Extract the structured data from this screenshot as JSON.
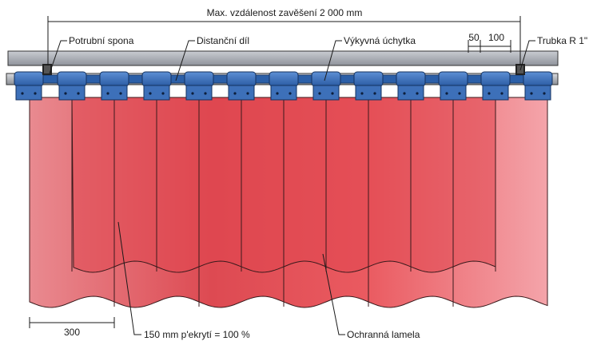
{
  "labels": {
    "max_distance": "Max. vzdálenost zavěšení 2 000 mm",
    "pipe_clamp": "Potrubní spona",
    "spacer": "Distanční díl",
    "swing_holder": "Výkyvná úchytka",
    "dim_50": "50",
    "dim_100": "100",
    "pipe": "Trubka R 1\"",
    "dim_300": "300",
    "overlap": "150 mm p'ekrytí = 100 %",
    "strip": "Ochranná lamela"
  },
  "colors": {
    "rail": "#a9adb4",
    "holder": "#3a6fb8",
    "holder_dark": "#1f4f93",
    "strip_light": "#ef9aa0",
    "strip_dark": "#d9474f",
    "line": "#1a1a1a"
  }
}
